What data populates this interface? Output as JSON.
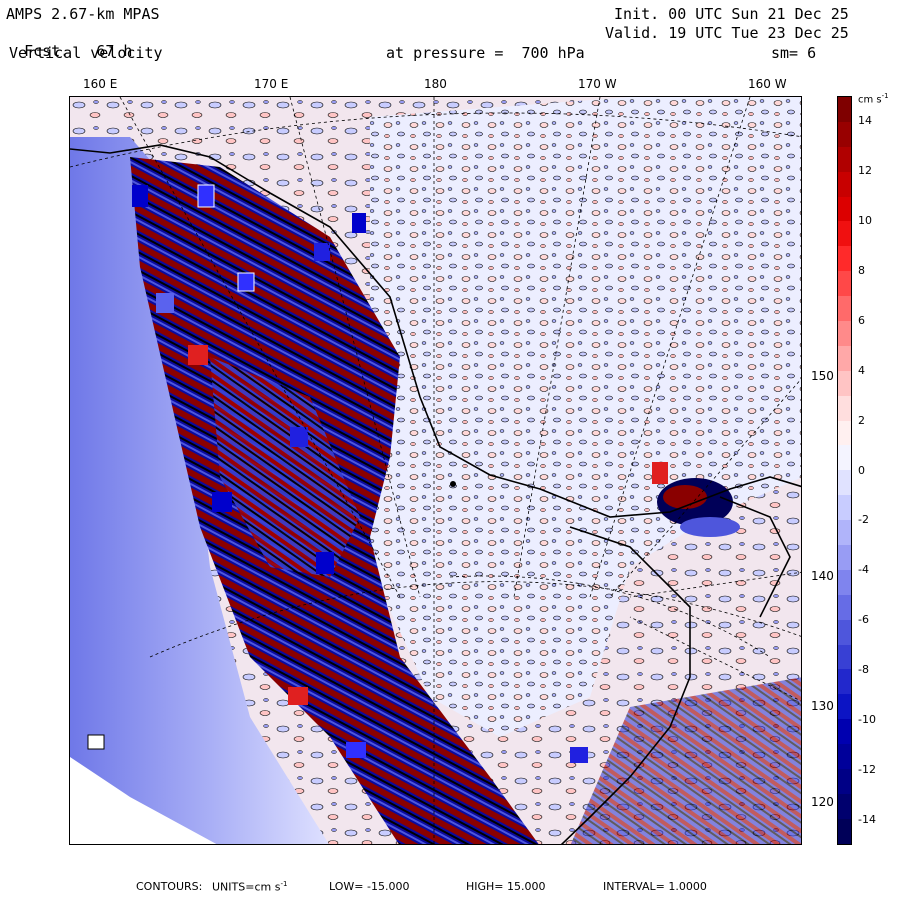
{
  "header": {
    "model": "AMPS 2.67-km MPAS",
    "fcst_label": "Fcst.",
    "fcst_value": "67 h",
    "field": "Vertical velocity",
    "init": "Init. 00 UTC Sun 21 Dec 25",
    "valid": "Valid. 19 UTC Tue 23 Dec 25",
    "level": "at pressure =  700 hPa",
    "smooth": "sm= 6"
  },
  "longitude_labels": [
    "160 E",
    "170 E",
    "180",
    "170 W",
    "160 W"
  ],
  "latitude_labels": [
    "150 W",
    "140 W",
    "130 W",
    "120 W"
  ],
  "colorbar": {
    "unit": "cm s",
    "unit_exp": "-1",
    "ticks": [
      "14",
      "12",
      "10",
      "8",
      "6",
      "4",
      "2",
      "0",
      "-2",
      "-4",
      "-6",
      "-8",
      "-10",
      "-12",
      "-14"
    ],
    "colors_top_to_bottom": [
      "#7f0000",
      "#980000",
      "#b00000",
      "#c80000",
      "#dc0000",
      "#f01010",
      "#ff2a2a",
      "#ff4848",
      "#ff6a6a",
      "#ff8a8a",
      "#ffa8a8",
      "#ffc4c4",
      "#ffdede",
      "#fff0f0",
      "#f4f4ff",
      "#e0e2ff",
      "#c8ccff",
      "#b0b4fa",
      "#989cf4",
      "#7f84ee",
      "#666ce6",
      "#4e56dc",
      "#3840d4",
      "#2228cc",
      "#0c14c4",
      "#0000b0",
      "#00009a",
      "#000086",
      "#00006e",
      "#000058"
    ]
  },
  "footer": {
    "contours_label": "CONTOURS:",
    "units": "UNITS=cm s",
    "units_exp": "-1",
    "low": "LOW= -15.000",
    "high": "HIGH=  15.000",
    "interval": "INTERVAL=   1.0000"
  }
}
